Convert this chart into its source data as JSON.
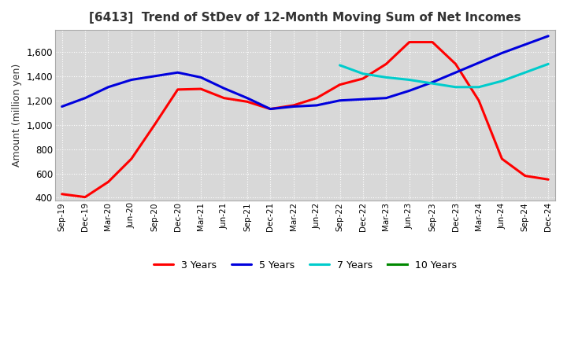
{
  "title": "[6413]  Trend of StDev of 12-Month Moving Sum of Net Incomes",
  "ylabel": "Amount (million yen)",
  "bg_color": "#d8d8d8",
  "ylim": [
    380,
    1780
  ],
  "yticks": [
    400,
    600,
    800,
    1000,
    1200,
    1400,
    1600
  ],
  "x_labels": [
    "Sep-19",
    "Dec-19",
    "Mar-20",
    "Jun-20",
    "Sep-20",
    "Dec-20",
    "Mar-21",
    "Jun-21",
    "Sep-21",
    "Dec-21",
    "Mar-22",
    "Jun-22",
    "Sep-22",
    "Dec-22",
    "Mar-23",
    "Jun-23",
    "Sep-23",
    "Dec-23",
    "Mar-24",
    "Jun-24",
    "Sep-24",
    "Dec-24"
  ],
  "series": [
    {
      "name": "3 Years",
      "color": "#ff0000",
      "data": [
        430,
        405,
        530,
        720,
        1000,
        1290,
        1295,
        1220,
        1190,
        1130,
        1160,
        1220,
        1330,
        1380,
        1500,
        1680,
        1680,
        1500,
        1200,
        720,
        580,
        550
      ]
    },
    {
      "name": "5 Years",
      "color": "#0000dd",
      "data": [
        1150,
        1220,
        1310,
        1370,
        1400,
        1430,
        1390,
        1300,
        1220,
        1130,
        1150,
        1160,
        1200,
        1210,
        1220,
        1280,
        1350,
        1430,
        1510,
        1590,
        1660,
        1730
      ]
    },
    {
      "name": "7 Years",
      "color": "#00cccc",
      "data": [
        null,
        null,
        null,
        null,
        null,
        null,
        null,
        null,
        null,
        null,
        null,
        null,
        1490,
        1420,
        1390,
        1370,
        1340,
        1310,
        1310,
        1360,
        1430,
        1500
      ]
    },
    {
      "name": "10 Years",
      "color": "#008800",
      "data": [
        null,
        null,
        null,
        null,
        null,
        null,
        null,
        null,
        null,
        null,
        null,
        null,
        null,
        null,
        null,
        null,
        null,
        null,
        null,
        null,
        null,
        null
      ]
    }
  ]
}
